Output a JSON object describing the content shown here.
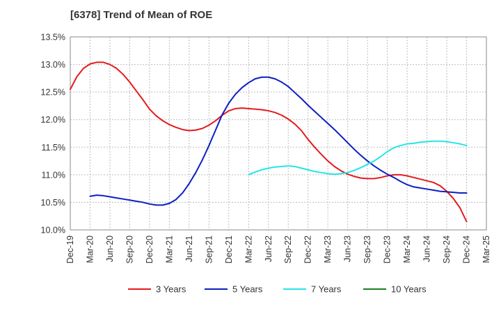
{
  "chart_data": {
    "type": "line",
    "title": "[6378]  Trend of Mean of ROE",
    "xlabel": "",
    "ylabel": "",
    "x_ticks": [
      "Dec-19",
      "Mar-20",
      "Jun-20",
      "Sep-20",
      "Dec-20",
      "Mar-21",
      "Jun-21",
      "Sep-21",
      "Dec-21",
      "Mar-22",
      "Jun-22",
      "Sep-22",
      "Dec-22",
      "Mar-23",
      "Jun-23",
      "Sep-23",
      "Dec-23",
      "Mar-24",
      "Jun-24",
      "Sep-24",
      "Dec-24",
      "Mar-25"
    ],
    "y_ticks": [
      "13.5%",
      "13.0%",
      "12.5%",
      "12.0%",
      "11.5%",
      "11.0%",
      "10.5%",
      "10.0%"
    ],
    "y_tick_values": [
      13.5,
      13.0,
      12.5,
      12.0,
      11.5,
      11.0,
      10.5,
      10.0
    ],
    "ylim": [
      10.0,
      13.5
    ],
    "grid": true,
    "legend_position": "bottom",
    "series": [
      {
        "name": "3 Years",
        "color": "#e41a1c",
        "points": [
          [
            "Dec-19",
            12.55
          ],
          [
            "Jan-20",
            12.78
          ],
          [
            "Feb-20",
            12.93
          ],
          [
            "Mar-20",
            13.01
          ],
          [
            "Apr-20",
            13.04
          ],
          [
            "May-20",
            13.04
          ],
          [
            "Jun-20",
            13.0
          ],
          [
            "Jul-20",
            12.93
          ],
          [
            "Aug-20",
            12.82
          ],
          [
            "Sep-20",
            12.68
          ],
          [
            "Oct-20",
            12.52
          ],
          [
            "Nov-20",
            12.36
          ],
          [
            "Dec-20",
            12.19
          ],
          [
            "Jan-21",
            12.07
          ],
          [
            "Feb-21",
            11.98
          ],
          [
            "Mar-21",
            11.91
          ],
          [
            "Apr-21",
            11.86
          ],
          [
            "May-21",
            11.82
          ],
          [
            "Jun-21",
            11.8
          ],
          [
            "Jul-21",
            11.81
          ],
          [
            "Aug-21",
            11.84
          ],
          [
            "Sep-21",
            11.9
          ],
          [
            "Oct-21",
            11.98
          ],
          [
            "Nov-21",
            12.08
          ],
          [
            "Dec-21",
            12.16
          ],
          [
            "Jan-22",
            12.2
          ],
          [
            "Feb-22",
            12.21
          ],
          [
            "Mar-22",
            12.2
          ],
          [
            "Apr-22",
            12.19
          ],
          [
            "May-22",
            12.18
          ],
          [
            "Jun-22",
            12.16
          ],
          [
            "Jul-22",
            12.13
          ],
          [
            "Aug-22",
            12.08
          ],
          [
            "Sep-22",
            12.01
          ],
          [
            "Oct-22",
            11.92
          ],
          [
            "Nov-22",
            11.8
          ],
          [
            "Dec-22",
            11.64
          ],
          [
            "Jan-23",
            11.5
          ],
          [
            "Feb-23",
            11.37
          ],
          [
            "Mar-23",
            11.25
          ],
          [
            "Apr-23",
            11.15
          ],
          [
            "May-23",
            11.07
          ],
          [
            "Jun-23",
            11.01
          ],
          [
            "Jul-23",
            10.97
          ],
          [
            "Aug-23",
            10.94
          ],
          [
            "Sep-23",
            10.93
          ],
          [
            "Oct-23",
            10.93
          ],
          [
            "Nov-23",
            10.95
          ],
          [
            "Dec-23",
            10.98
          ],
          [
            "Jan-24",
            11.0
          ],
          [
            "Feb-24",
            11.0
          ],
          [
            "Mar-24",
            10.98
          ],
          [
            "Apr-24",
            10.95
          ],
          [
            "May-24",
            10.92
          ],
          [
            "Jun-24",
            10.89
          ],
          [
            "Jul-24",
            10.86
          ],
          [
            "Aug-24",
            10.8
          ],
          [
            "Sep-24",
            10.7
          ],
          [
            "Oct-24",
            10.57
          ],
          [
            "Nov-24",
            10.4
          ],
          [
            "Dec-24",
            10.15
          ]
        ]
      },
      {
        "name": "5 Years",
        "color": "#0a1fc2",
        "points": [
          [
            "Mar-20",
            10.61
          ],
          [
            "Apr-20",
            10.63
          ],
          [
            "May-20",
            10.62
          ],
          [
            "Jun-20",
            10.6
          ],
          [
            "Jul-20",
            10.58
          ],
          [
            "Aug-20",
            10.56
          ],
          [
            "Sep-20",
            10.54
          ],
          [
            "Oct-20",
            10.52
          ],
          [
            "Nov-20",
            10.5
          ],
          [
            "Dec-20",
            10.47
          ],
          [
            "Jan-21",
            10.45
          ],
          [
            "Feb-21",
            10.45
          ],
          [
            "Mar-21",
            10.48
          ],
          [
            "Apr-21",
            10.55
          ],
          [
            "May-21",
            10.67
          ],
          [
            "Jun-21",
            10.84
          ],
          [
            "Jul-21",
            11.04
          ],
          [
            "Aug-21",
            11.27
          ],
          [
            "Sep-21",
            11.53
          ],
          [
            "Oct-21",
            11.81
          ],
          [
            "Nov-21",
            12.09
          ],
          [
            "Dec-21",
            12.3
          ],
          [
            "Jan-22",
            12.46
          ],
          [
            "Feb-22",
            12.58
          ],
          [
            "Mar-22",
            12.67
          ],
          [
            "Apr-22",
            12.74
          ],
          [
            "May-22",
            12.77
          ],
          [
            "Jun-22",
            12.77
          ],
          [
            "Jul-22",
            12.74
          ],
          [
            "Aug-22",
            12.68
          ],
          [
            "Sep-22",
            12.6
          ],
          [
            "Oct-22",
            12.49
          ],
          [
            "Nov-22",
            12.38
          ],
          [
            "Dec-22",
            12.26
          ],
          [
            "Jan-23",
            12.15
          ],
          [
            "Feb-23",
            12.04
          ],
          [
            "Mar-23",
            11.93
          ],
          [
            "Apr-23",
            11.82
          ],
          [
            "May-23",
            11.7
          ],
          [
            "Jun-23",
            11.58
          ],
          [
            "Jul-23",
            11.46
          ],
          [
            "Aug-23",
            11.35
          ],
          [
            "Sep-23",
            11.25
          ],
          [
            "Oct-23",
            11.16
          ],
          [
            "Nov-23",
            11.08
          ],
          [
            "Dec-23",
            11.01
          ],
          [
            "Jan-24",
            10.95
          ],
          [
            "Feb-24",
            10.88
          ],
          [
            "Mar-24",
            10.82
          ],
          [
            "Apr-24",
            10.78
          ],
          [
            "May-24",
            10.76
          ],
          [
            "Jun-24",
            10.74
          ],
          [
            "Jul-24",
            10.72
          ],
          [
            "Aug-24",
            10.7
          ],
          [
            "Sep-24",
            10.69
          ],
          [
            "Oct-24",
            10.68
          ],
          [
            "Nov-24",
            10.67
          ],
          [
            "Dec-24",
            10.67
          ]
        ]
      },
      {
        "name": "7 Years",
        "color": "#22e6e6",
        "points": [
          [
            "Mar-22",
            11.0
          ],
          [
            "Apr-22",
            11.05
          ],
          [
            "May-22",
            11.09
          ],
          [
            "Jun-22",
            11.12
          ],
          [
            "Jul-22",
            11.14
          ],
          [
            "Aug-22",
            11.15
          ],
          [
            "Sep-22",
            11.16
          ],
          [
            "Oct-22",
            11.15
          ],
          [
            "Nov-22",
            11.12
          ],
          [
            "Dec-22",
            11.09
          ],
          [
            "Jan-23",
            11.06
          ],
          [
            "Feb-23",
            11.04
          ],
          [
            "Mar-23",
            11.02
          ],
          [
            "Apr-23",
            11.01
          ],
          [
            "May-23",
            11.02
          ],
          [
            "Jun-23",
            11.04
          ],
          [
            "Jul-23",
            11.08
          ],
          [
            "Aug-23",
            11.13
          ],
          [
            "Sep-23",
            11.19
          ],
          [
            "Oct-23",
            11.25
          ],
          [
            "Nov-23",
            11.33
          ],
          [
            "Dec-23",
            11.42
          ],
          [
            "Jan-24",
            11.49
          ],
          [
            "Feb-24",
            11.53
          ],
          [
            "Mar-24",
            11.56
          ],
          [
            "Apr-24",
            11.57
          ],
          [
            "May-24",
            11.59
          ],
          [
            "Jun-24",
            11.6
          ],
          [
            "Jul-24",
            11.61
          ],
          [
            "Aug-24",
            11.61
          ],
          [
            "Sep-24",
            11.6
          ],
          [
            "Oct-24",
            11.58
          ],
          [
            "Nov-24",
            11.56
          ],
          [
            "Dec-24",
            11.53
          ]
        ]
      },
      {
        "name": "10 Years",
        "color": "#1e7d1e",
        "points": []
      }
    ]
  }
}
